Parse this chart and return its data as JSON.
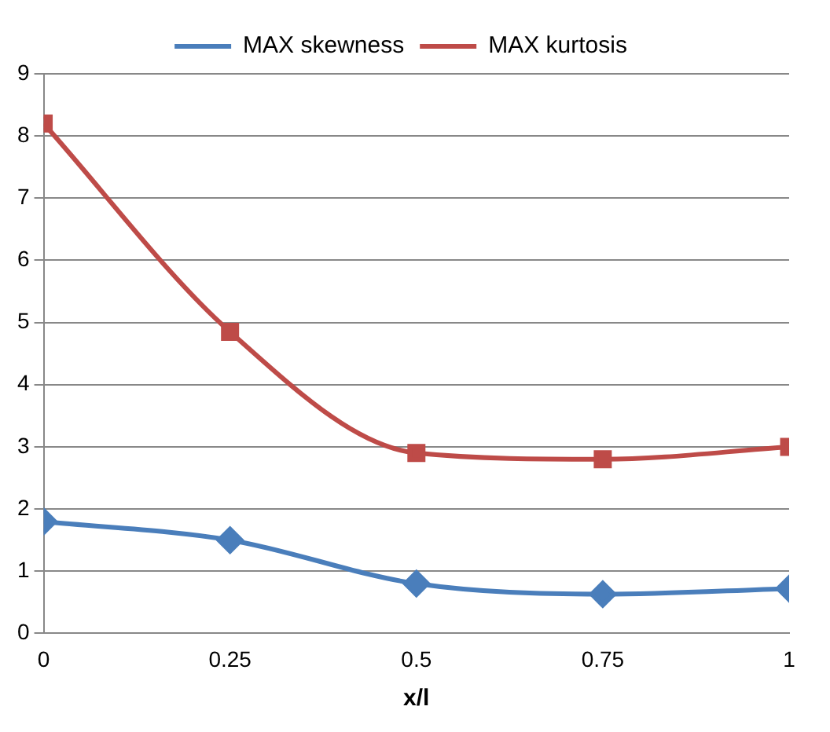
{
  "chart_data": {
    "type": "line",
    "xlabel": "x/l",
    "x": [
      0,
      0.25,
      0.5,
      0.75,
      1
    ],
    "series": [
      {
        "name": "MAX skewness",
        "color": "#4a7ebb",
        "marker": "diamond",
        "values": [
          1.8,
          1.5,
          0.8,
          0.63,
          0.72
        ]
      },
      {
        "name": "MAX kurtosis",
        "color": "#be4b48",
        "marker": "square",
        "values": [
          8.2,
          4.85,
          2.9,
          2.8,
          3.0
        ]
      }
    ],
    "xlim": [
      0,
      1
    ],
    "xticks": [
      0,
      0.25,
      0.5,
      0.75,
      1
    ],
    "ylim": [
      0,
      9
    ],
    "yticks": [
      0,
      1,
      2,
      3,
      4,
      5,
      6,
      7,
      8,
      9
    ],
    "grid": "y",
    "legend": "top",
    "line_style": "solid"
  }
}
